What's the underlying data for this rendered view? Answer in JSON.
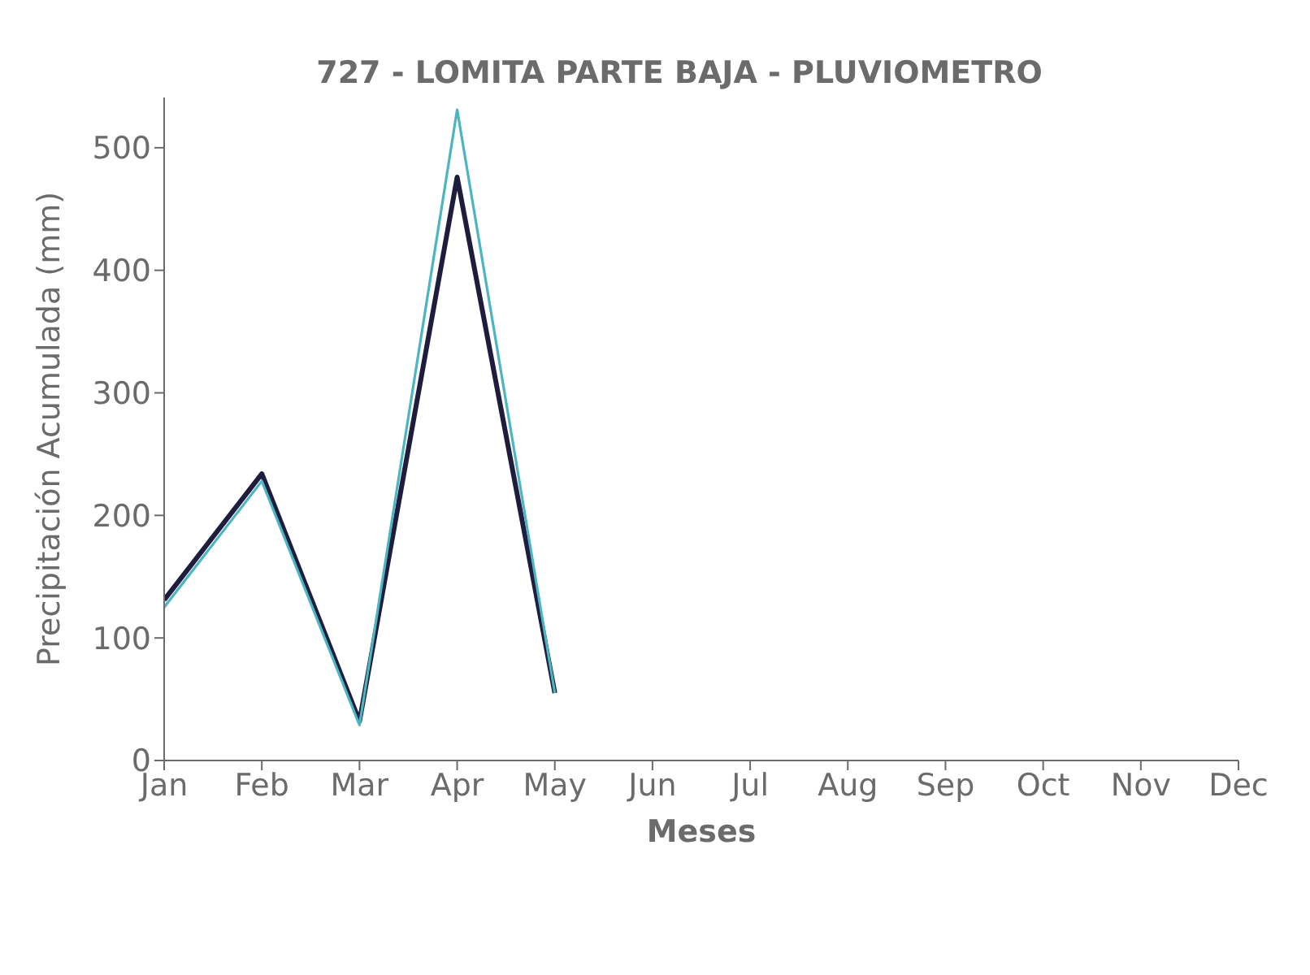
{
  "chart_data": {
    "type": "line",
    "title": "727 - LOMITA PARTE BAJA - PLUVIOMETRO",
    "xlabel": "Meses",
    "ylabel": "Precipitación Acumulada (mm)",
    "categories": [
      "Jan",
      "Feb",
      "Mar",
      "Apr",
      "May",
      "Jun",
      "Jul",
      "Aug",
      "Sep",
      "Oct",
      "Nov",
      "Dec"
    ],
    "series": [
      {
        "color": "#1f1d3d",
        "values": [
          131,
          234,
          32,
          476,
          55,
          null,
          null,
          null,
          null,
          null,
          null,
          null
        ]
      },
      {
        "color": "#4bb5c1",
        "values": [
          125,
          228,
          29,
          531,
          55,
          null,
          null,
          null,
          null,
          null,
          null,
          null
        ]
      }
    ],
    "ylim": [
      0,
      541
    ],
    "yticks": [
      0,
      100,
      200,
      300,
      400,
      500
    ],
    "grid": false,
    "legend": false,
    "marker": "none",
    "line_style": "solid"
  }
}
